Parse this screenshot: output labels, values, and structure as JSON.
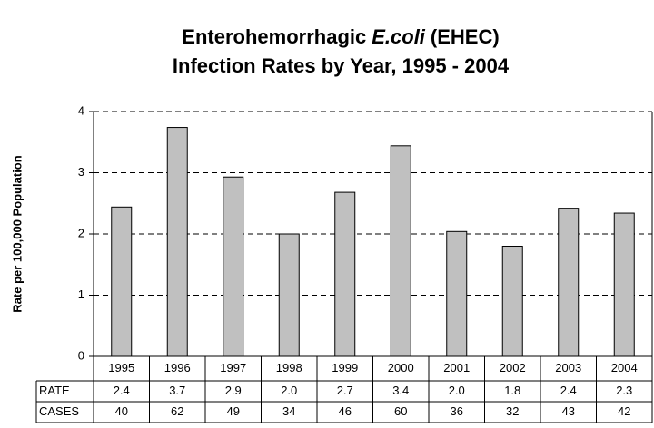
{
  "chart_data": {
    "type": "bar",
    "title": {
      "line1": [
        "Enterohemorrhagic",
        "E.coli",
        "(EHEC)"
      ],
      "line2": "Infection Rates by Year, 1995 - 2004"
    },
    "y_label": "Rate per 100,000 Population",
    "categories": [
      "1995",
      "1996",
      "1997",
      "1998",
      "1999",
      "2000",
      "2001",
      "2002",
      "2003",
      "2004"
    ],
    "values": [
      2.44,
      3.74,
      2.93,
      2.0,
      2.68,
      3.44,
      2.04,
      1.8,
      2.42,
      2.34
    ],
    "value_labels": [
      "2.4",
      "3.7",
      "2.9",
      "2.0",
      "2.7",
      "3.4",
      "2.0",
      "1.8",
      "2.4",
      "2.3"
    ],
    "cases": [
      40,
      62,
      49,
      34,
      46,
      60,
      36,
      32,
      43,
      42
    ],
    "row_labels": {
      "rate": "RATE",
      "cases": "CASES"
    },
    "color": "#c0c0c0",
    "ylim": [
      0,
      4
    ],
    "yticks": [
      0,
      1,
      2,
      3,
      4
    ],
    "grid": true
  }
}
